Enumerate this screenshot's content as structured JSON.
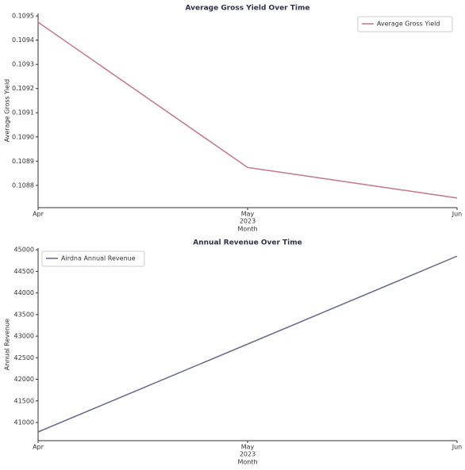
{
  "chart_data": [
    {
      "type": "line",
      "title": "Average Gross Yield Over Time",
      "x_label": "Month",
      "y_label": "Average Gross Yield",
      "categories": [
        "Apr",
        "May",
        "Jun"
      ],
      "x_sublabel": "2023",
      "series": [
        {
          "name": "Average Gross Yield",
          "color": "#c0808f",
          "values": [
            0.109474,
            0.108874,
            0.108748
          ]
        }
      ],
      "ylim": [
        0.108708,
        0.10951
      ],
      "yticks": [
        {
          "value": 0.1088,
          "label": "0.1088"
        },
        0.1089,
        {
          "value": 0.109,
          "label": "0.1090"
        },
        0.1091,
        0.1092,
        0.1093,
        0.1094,
        0.1095
      ],
      "legend": "upper right"
    },
    {
      "type": "line",
      "title": "Annual Revenue Over Time",
      "x_label": "Month",
      "y_label": "Annual Revenue",
      "categories": [
        "Apr",
        "May",
        "Jun"
      ],
      "x_sublabel": "2023",
      "series": [
        {
          "name": "Airdna Annual Revenue",
          "color": "#6e6e8e",
          "values": [
            40780,
            42816,
            44853
          ]
        }
      ],
      "ylim": [
        40578,
        45040
      ],
      "yticks": [
        41000,
        41500,
        42000,
        42500,
        43000,
        43500,
        44000,
        44500,
        45000
      ],
      "legend": "upper left"
    }
  ]
}
